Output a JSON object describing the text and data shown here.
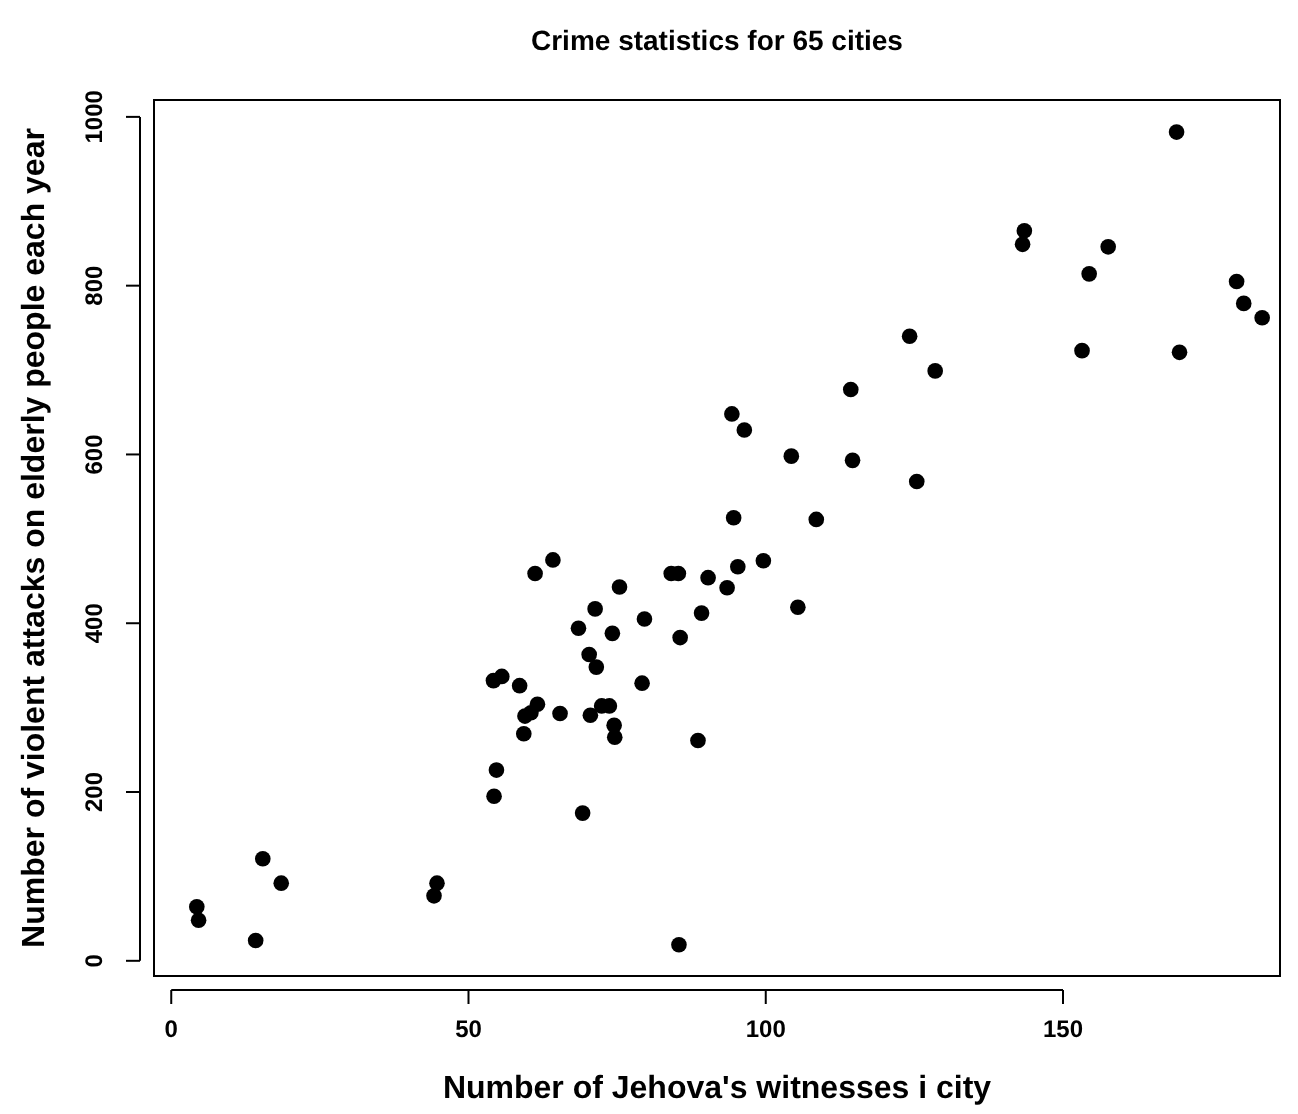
{
  "chart_data": {
    "type": "scatter",
    "title": "Crime statistics for 65 cities",
    "xlabel": "Number of Jehova's witnesses i city",
    "ylabel": "Number of violent attacks on elderly people each year",
    "xlim": [
      -2.9,
      186.5
    ],
    "ylim": [
      -18,
      1020
    ],
    "xticks": [
      0,
      50,
      100,
      150
    ],
    "yticks": [
      0,
      200,
      400,
      600,
      800,
      1000
    ],
    "grid": false,
    "marker": "circle",
    "series": [
      {
        "color": "#000000",
        "x": [
          4.3,
          4.6,
          15.4,
          18.5,
          14.2,
          44.7,
          44.2,
          54.3,
          54.7,
          69.2,
          85.4,
          54.2,
          55.6,
          58.6,
          59.3,
          59.5,
          60.5,
          61.6,
          65.4,
          61.2,
          64.2,
          68.5,
          71.3,
          70.3,
          71.5,
          74.2,
          70.5,
          72.4,
          73.7,
          74.5,
          74.6,
          75.4,
          79.6,
          79.2,
          84.1,
          85.3,
          90.3,
          89.2,
          85.6,
          88.6,
          93.5,
          95.3,
          99.6,
          94.6,
          108.5,
          105.4,
          94.3,
          96.4,
          104.3,
          114.6,
          125.4,
          114.3,
          124.2,
          128.5,
          143.5,
          143.2,
          154.4,
          157.6,
          153.2,
          169.1,
          169.6,
          179.2,
          180.4,
          183.5
        ],
        "values": [
          64,
          48,
          121,
          92,
          24,
          92,
          77,
          195,
          226,
          175,
          19,
          332,
          337,
          326,
          269,
          290,
          294,
          304,
          293,
          459,
          475,
          394,
          417,
          363,
          348,
          388,
          291,
          302,
          302,
          279,
          265,
          443,
          405,
          329,
          459,
          459,
          454,
          412,
          383,
          261,
          442,
          467,
          474,
          525,
          523,
          419,
          648,
          629,
          598,
          593,
          568,
          677,
          740,
          699,
          865,
          849,
          814,
          846,
          723,
          982,
          721,
          805,
          779,
          762
        ]
      }
    ]
  }
}
